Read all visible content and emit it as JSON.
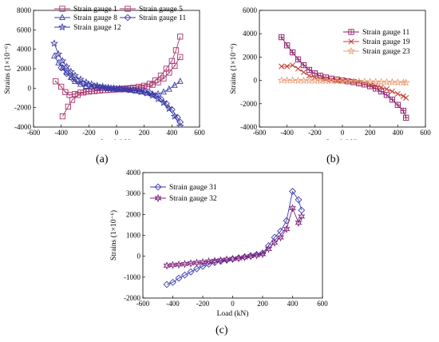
{
  "chart_data": [
    {
      "type": "line",
      "panel_label": "(a)",
      "xlabel": "Load (kN)",
      "ylabel": "Strains (1×10⁻⁶)",
      "xlim": [
        -600,
        600
      ],
      "ylim": [
        -4000,
        8000
      ],
      "xticks": [
        -600,
        -400,
        -200,
        0,
        200,
        400,
        600
      ],
      "yticks": [
        -4000,
        -2000,
        0,
        2000,
        4000,
        6000,
        8000
      ],
      "legend": "top, two columns",
      "series": [
        {
          "name": "Strain gauge  1",
          "color": "#a8336e",
          "marker": "square",
          "points": [
            [
              -390,
              -2900
            ],
            [
              -350,
              -1900
            ],
            [
              -320,
              -1200
            ],
            [
              -280,
              -700
            ],
            [
              -240,
              -450
            ],
            [
              -200,
              -350
            ],
            [
              -160,
              -300
            ],
            [
              -120,
              -250
            ],
            [
              -80,
              -200
            ],
            [
              -40,
              -150
            ],
            [
              0,
              -100
            ],
            [
              40,
              -50
            ],
            [
              80,
              0
            ],
            [
              120,
              50
            ],
            [
              160,
              150
            ],
            [
              200,
              250
            ],
            [
              240,
              450
            ],
            [
              280,
              800
            ],
            [
              320,
              1300
            ],
            [
              360,
              2000
            ],
            [
              400,
              2800
            ],
            [
              430,
              3900
            ],
            [
              460,
              5300
            ]
          ]
        },
        {
          "name": "Strain gauge  5",
          "color": "#a8336e",
          "marker": "square-center",
          "points": [
            [
              -440,
              700
            ],
            [
              -400,
              150
            ],
            [
              -370,
              -400
            ],
            [
              -340,
              -700
            ],
            [
              -300,
              -600
            ],
            [
              -260,
              -450
            ],
            [
              -220,
              -350
            ],
            [
              -180,
              -300
            ],
            [
              -140,
              -250
            ],
            [
              -100,
              -200
            ],
            [
              -60,
              -180
            ],
            [
              -20,
              -150
            ],
            [
              20,
              -130
            ],
            [
              60,
              -100
            ],
            [
              100,
              -50
            ],
            [
              140,
              0
            ],
            [
              180,
              50
            ],
            [
              220,
              150
            ],
            [
              260,
              350
            ],
            [
              300,
              600
            ],
            [
              340,
              1000
            ],
            [
              380,
              1600
            ],
            [
              420,
              2300
            ],
            [
              460,
              3200
            ]
          ]
        },
        {
          "name": "Strain gauge  8",
          "color": "#3a3aa8",
          "marker": "triangle",
          "points": [
            [
              -450,
              3300
            ],
            [
              -420,
              2600
            ],
            [
              -390,
              2100
            ],
            [
              -360,
              1600
            ],
            [
              -330,
              1100
            ],
            [
              -300,
              700
            ],
            [
              -260,
              400
            ],
            [
              -220,
              200
            ],
            [
              -180,
              100
            ],
            [
              -140,
              50
            ],
            [
              -100,
              0
            ],
            [
              -60,
              -50
            ],
            [
              -20,
              -80
            ],
            [
              20,
              -100
            ],
            [
              60,
              -150
            ],
            [
              100,
              -200
            ],
            [
              140,
              -300
            ],
            [
              180,
              -400
            ],
            [
              220,
              -500
            ],
            [
              260,
              -600
            ],
            [
              300,
              -600
            ],
            [
              340,
              -400
            ],
            [
              380,
              -100
            ],
            [
              420,
              300
            ],
            [
              460,
              700
            ]
          ]
        },
        {
          "name": "Strain gauge  11",
          "color": "#3a3aa8",
          "marker": "diamond",
          "points": [
            [
              -400,
              2100
            ],
            [
              -360,
              1500
            ],
            [
              -320,
              1000
            ],
            [
              -280,
              700
            ],
            [
              -240,
              450
            ],
            [
              -200,
              300
            ],
            [
              -160,
              200
            ],
            [
              -120,
              100
            ],
            [
              -80,
              50
            ],
            [
              -40,
              0
            ],
            [
              0,
              -50
            ],
            [
              40,
              -80
            ],
            [
              80,
              -120
            ],
            [
              120,
              -180
            ],
            [
              160,
              -250
            ],
            [
              200,
              -350
            ],
            [
              240,
              -500
            ],
            [
              280,
              -750
            ],
            [
              320,
              -1100
            ],
            [
              360,
              -1600
            ],
            [
              400,
              -2200
            ],
            [
              440,
              -3000
            ],
            [
              460,
              -3500
            ]
          ]
        },
        {
          "name": "Strain gauge  12",
          "color": "#3a3aa8",
          "marker": "star",
          "points": [
            [
              -450,
              4600
            ],
            [
              -420,
              3500
            ],
            [
              -390,
              2800
            ],
            [
              -360,
              2200
            ],
            [
              -330,
              1700
            ],
            [
              -300,
              1300
            ],
            [
              -260,
              900
            ],
            [
              -220,
              600
            ],
            [
              -180,
              400
            ],
            [
              -140,
              250
            ],
            [
              -100,
              150
            ],
            [
              -60,
              50
            ],
            [
              -20,
              0
            ],
            [
              20,
              -50
            ],
            [
              60,
              -100
            ],
            [
              100,
              -180
            ],
            [
              140,
              -250
            ],
            [
              180,
              -350
            ],
            [
              220,
              -500
            ],
            [
              260,
              -750
            ],
            [
              300,
              -1100
            ],
            [
              340,
              -1500
            ],
            [
              380,
              -2100
            ],
            [
              420,
              -2900
            ],
            [
              460,
              -3900
            ]
          ]
        }
      ]
    },
    {
      "type": "line",
      "panel_label": "(b)",
      "xlabel": "Load (kN)",
      "ylabel": "Strains (1×10⁻⁶)",
      "xlim": [
        -600,
        600
      ],
      "ylim": [
        -4000,
        6000
      ],
      "xticks": [
        -600,
        -400,
        -200,
        0,
        200,
        400,
        600
      ],
      "yticks": [
        -4000,
        -2000,
        0,
        2000,
        4000,
        6000
      ],
      "legend": "top-right",
      "series": [
        {
          "name": "Strain gauge  11",
          "color": "#8b1a6b",
          "marker": "square-cross",
          "points": [
            [
              -440,
              3700
            ],
            [
              -400,
              3000
            ],
            [
              -360,
              2400
            ],
            [
              -320,
              1800
            ],
            [
              -280,
              1300
            ],
            [
              -240,
              900
            ],
            [
              -200,
              600
            ],
            [
              -160,
              400
            ],
            [
              -120,
              250
            ],
            [
              -80,
              150
            ],
            [
              -40,
              80
            ],
            [
              0,
              0
            ],
            [
              40,
              -80
            ],
            [
              80,
              -150
            ],
            [
              120,
              -250
            ],
            [
              160,
              -350
            ],
            [
              200,
              -500
            ],
            [
              240,
              -700
            ],
            [
              280,
              -950
            ],
            [
              320,
              -1250
            ],
            [
              360,
              -1650
            ],
            [
              400,
              -2100
            ],
            [
              440,
              -2600
            ],
            [
              460,
              -3200
            ]
          ]
        },
        {
          "name": "Strain gauge  19",
          "color": "#c0392b",
          "marker": "x",
          "points": [
            [
              -440,
              1200
            ],
            [
              -400,
              1200
            ],
            [
              -360,
              1300
            ],
            [
              -320,
              1000
            ],
            [
              -280,
              700
            ],
            [
              -240,
              400
            ],
            [
              -200,
              250
            ],
            [
              -160,
              150
            ],
            [
              -120,
              100
            ],
            [
              -80,
              50
            ],
            [
              -40,
              0
            ],
            [
              0,
              -30
            ],
            [
              40,
              -70
            ],
            [
              80,
              -120
            ],
            [
              120,
              -180
            ],
            [
              160,
              -250
            ],
            [
              200,
              -350
            ],
            [
              240,
              -450
            ],
            [
              280,
              -600
            ],
            [
              320,
              -750
            ],
            [
              360,
              -950
            ],
            [
              400,
              -1150
            ],
            [
              440,
              -1350
            ],
            [
              460,
              -1500
            ]
          ]
        },
        {
          "name": "Strain gauge  23",
          "color": "#e8a07a",
          "marker": "star",
          "points": [
            [
              -440,
              0
            ],
            [
              -400,
              0
            ],
            [
              -360,
              0
            ],
            [
              -320,
              -20
            ],
            [
              -280,
              -20
            ],
            [
              -240,
              -30
            ],
            [
              -200,
              -30
            ],
            [
              -160,
              -40
            ],
            [
              -120,
              -50
            ],
            [
              -80,
              -50
            ],
            [
              -40,
              -60
            ],
            [
              0,
              -70
            ],
            [
              40,
              -80
            ],
            [
              80,
              -90
            ],
            [
              120,
              -100
            ],
            [
              160,
              -110
            ],
            [
              200,
              -120
            ],
            [
              240,
              -130
            ],
            [
              280,
              -140
            ],
            [
              320,
              -150
            ],
            [
              360,
              -160
            ],
            [
              400,
              -170
            ],
            [
              440,
              -180
            ],
            [
              460,
              -190
            ]
          ]
        }
      ]
    },
    {
      "type": "line",
      "panel_label": "(c)",
      "xlabel": "Load (kN)",
      "ylabel": "Strains (1×10⁻⁶)",
      "xlim": [
        -600,
        600
      ],
      "ylim": [
        -2000,
        4000
      ],
      "xticks": [
        -600,
        -400,
        -200,
        0,
        200,
        400,
        600
      ],
      "yticks": [
        -2000,
        -1000,
        0,
        1000,
        2000,
        3000,
        4000
      ],
      "legend": "top-left",
      "series": [
        {
          "name": "Strain gauge  31",
          "color": "#3a3aa8",
          "marker": "diamond",
          "points": [
            [
              -440,
              -1350
            ],
            [
              -400,
              -1250
            ],
            [
              -360,
              -1050
            ],
            [
              -320,
              -900
            ],
            [
              -280,
              -750
            ],
            [
              -240,
              -600
            ],
            [
              -200,
              -480
            ],
            [
              -160,
              -380
            ],
            [
              -120,
              -300
            ],
            [
              -80,
              -240
            ],
            [
              -40,
              -180
            ],
            [
              0,
              -130
            ],
            [
              40,
              -80
            ],
            [
              80,
              -30
            ],
            [
              120,
              20
            ],
            [
              160,
              80
            ],
            [
              200,
              150
            ],
            [
              240,
              500
            ],
            [
              280,
              900
            ],
            [
              320,
              1200
            ],
            [
              360,
              1700
            ],
            [
              400,
              3100
            ],
            [
              440,
              2700
            ],
            [
              460,
              2200
            ]
          ]
        },
        {
          "name": "Strain gauge  32",
          "color": "#7b1f7a",
          "marker": "star6",
          "points": [
            [
              -440,
              -450
            ],
            [
              -400,
              -420
            ],
            [
              -360,
              -400
            ],
            [
              -320,
              -370
            ],
            [
              -280,
              -340
            ],
            [
              -240,
              -310
            ],
            [
              -200,
              -280
            ],
            [
              -160,
              -250
            ],
            [
              -120,
              -220
            ],
            [
              -80,
              -190
            ],
            [
              -40,
              -160
            ],
            [
              0,
              -130
            ],
            [
              40,
              -100
            ],
            [
              80,
              -50
            ],
            [
              120,
              0
            ],
            [
              160,
              50
            ],
            [
              200,
              100
            ],
            [
              240,
              350
            ],
            [
              280,
              650
            ],
            [
              320,
              900
            ],
            [
              360,
              1300
            ],
            [
              400,
              2300
            ],
            [
              440,
              1600
            ],
            [
              460,
              1900
            ]
          ]
        }
      ]
    }
  ]
}
